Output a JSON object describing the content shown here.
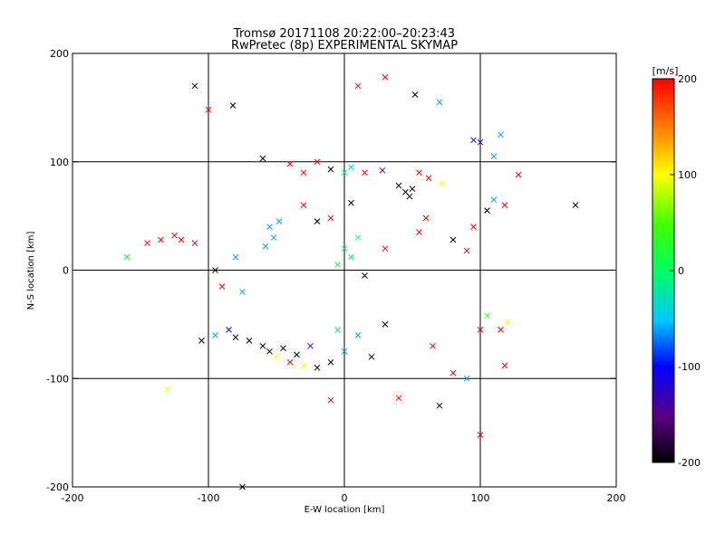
{
  "chart_data": {
    "type": "scatter",
    "title": "Tromsø 20171108 20:22:00–20:23:43",
    "subtitle": "RwPretec (8p) EXPERIMENTAL SKYMAP",
    "xlabel": "E-W location [km]",
    "ylabel": "N-S location [km]",
    "xlim": [
      -200,
      200
    ],
    "ylim": [
      -200,
      200
    ],
    "xticks": [
      "-200",
      "-100",
      "0",
      "100",
      "200"
    ],
    "yticks": [
      "-200",
      "-100",
      "0",
      "100",
      "200"
    ],
    "grid_lines": [
      -100,
      0,
      100
    ],
    "colorbar": {
      "label": "[m/s]",
      "range": [
        -200,
        200
      ],
      "ticks": [
        "-200",
        "-100",
        "0",
        "100",
        "200"
      ]
    },
    "marker_legend": "dots = small echoes, crosses = large echoes (implied by marker size)",
    "points": [
      {
        "x": -110,
        "y": 170,
        "v": -200,
        "m": "x"
      },
      {
        "x": -82,
        "y": 152,
        "v": -200,
        "m": "x"
      },
      {
        "x": -100,
        "y": 148,
        "v": 200,
        "m": "x"
      },
      {
        "x": -60,
        "y": 103,
        "v": -200,
        "m": "x"
      },
      {
        "x": -40,
        "y": 98,
        "v": 200,
        "m": "x"
      },
      {
        "x": -30,
        "y": 90,
        "v": 200,
        "m": "x"
      },
      {
        "x": -20,
        "y": 100,
        "v": 200,
        "m": "x"
      },
      {
        "x": -10,
        "y": 93,
        "v": -200,
        "m": "x"
      },
      {
        "x": 0,
        "y": 90,
        "v": 0,
        "m": "x"
      },
      {
        "x": 5,
        "y": 95,
        "v": -50,
        "m": "x"
      },
      {
        "x": 15,
        "y": 90,
        "v": 200,
        "m": "x"
      },
      {
        "x": 28,
        "y": 92,
        "v": -150,
        "m": "x"
      },
      {
        "x": 40,
        "y": 78,
        "v": -200,
        "m": "x"
      },
      {
        "x": 45,
        "y": 72,
        "v": -200,
        "m": "x"
      },
      {
        "x": 50,
        "y": 75,
        "v": -200,
        "m": "x"
      },
      {
        "x": 48,
        "y": 68,
        "v": -200,
        "m": "x"
      },
      {
        "x": 55,
        "y": 90,
        "v": 200,
        "m": "x"
      },
      {
        "x": 62,
        "y": 85,
        "v": 200,
        "m": "x"
      },
      {
        "x": 72,
        "y": 80,
        "v": 100,
        "m": "x"
      },
      {
        "x": 95,
        "y": 120,
        "v": -100,
        "m": "x"
      },
      {
        "x": 100,
        "y": 118,
        "v": -120,
        "m": "x"
      },
      {
        "x": 110,
        "y": 105,
        "v": -60,
        "m": "x"
      },
      {
        "x": 115,
        "y": 125,
        "v": -60,
        "m": "x"
      },
      {
        "x": 70,
        "y": 155,
        "v": -60,
        "m": "x"
      },
      {
        "x": 52,
        "y": 162,
        "v": -200,
        "m": "x"
      },
      {
        "x": 10,
        "y": 170,
        "v": 200,
        "m": "x"
      },
      {
        "x": 30,
        "y": 178,
        "v": 200,
        "m": "x"
      },
      {
        "x": 110,
        "y": 65,
        "v": -60,
        "m": "x"
      },
      {
        "x": 118,
        "y": 60,
        "v": 200,
        "m": "x"
      },
      {
        "x": 128,
        "y": 88,
        "v": 200,
        "m": "x"
      },
      {
        "x": 105,
        "y": 55,
        "v": -200,
        "m": "x"
      },
      {
        "x": 170,
        "y": 60,
        "v": -200,
        "m": "x"
      },
      {
        "x": -145,
        "y": 25,
        "v": 200,
        "m": "x"
      },
      {
        "x": -125,
        "y": 32,
        "v": 200,
        "m": "x"
      },
      {
        "x": -120,
        "y": 28,
        "v": 200,
        "m": "x"
      },
      {
        "x": -110,
        "y": 25,
        "v": 200,
        "m": "x"
      },
      {
        "x": -135,
        "y": 28,
        "v": 200,
        "m": "x"
      },
      {
        "x": -160,
        "y": 12,
        "v": 20,
        "m": "x"
      },
      {
        "x": -55,
        "y": 40,
        "v": -60,
        "m": "x"
      },
      {
        "x": -52,
        "y": 30,
        "v": -60,
        "m": "x"
      },
      {
        "x": -48,
        "y": 45,
        "v": -60,
        "m": "x"
      },
      {
        "x": -58,
        "y": 22,
        "v": -60,
        "m": "x"
      },
      {
        "x": -30,
        "y": 60,
        "v": 200,
        "m": "x"
      },
      {
        "x": -20,
        "y": 45,
        "v": -200,
        "m": "x"
      },
      {
        "x": -10,
        "y": 48,
        "v": 200,
        "m": "x"
      },
      {
        "x": 5,
        "y": 62,
        "v": -200,
        "m": "x"
      },
      {
        "x": 10,
        "y": 30,
        "v": 20,
        "m": "x"
      },
      {
        "x": 0,
        "y": 20,
        "v": 10,
        "m": "x"
      },
      {
        "x": 5,
        "y": 12,
        "v": 0,
        "m": "x"
      },
      {
        "x": -5,
        "y": 5,
        "v": 20,
        "m": "x"
      },
      {
        "x": 15,
        "y": -5,
        "v": -200,
        "m": "x"
      },
      {
        "x": 30,
        "y": 20,
        "v": 200,
        "m": "x"
      },
      {
        "x": 55,
        "y": 35,
        "v": 200,
        "m": "x"
      },
      {
        "x": 60,
        "y": 48,
        "v": 200,
        "m": "x"
      },
      {
        "x": 80,
        "y": 28,
        "v": -200,
        "m": "x"
      },
      {
        "x": 90,
        "y": 18,
        "v": 200,
        "m": "x"
      },
      {
        "x": 95,
        "y": 40,
        "v": 200,
        "m": "x"
      },
      {
        "x": -95,
        "y": 0,
        "v": -200,
        "m": "x"
      },
      {
        "x": -90,
        "y": -15,
        "v": 200,
        "m": "x"
      },
      {
        "x": -75,
        "y": -20,
        "v": -60,
        "m": "x"
      },
      {
        "x": -105,
        "y": -65,
        "v": -200,
        "m": "x"
      },
      {
        "x": -95,
        "y": -60,
        "v": -60,
        "m": "x"
      },
      {
        "x": -85,
        "y": -55,
        "v": -120,
        "m": "x"
      },
      {
        "x": -80,
        "y": -62,
        "v": -200,
        "m": "x"
      },
      {
        "x": -70,
        "y": -65,
        "v": -200,
        "m": "x"
      },
      {
        "x": -60,
        "y": -70,
        "v": -200,
        "m": "x"
      },
      {
        "x": -55,
        "y": -75,
        "v": -200,
        "m": "x"
      },
      {
        "x": -50,
        "y": -80,
        "v": 100,
        "m": "x"
      },
      {
        "x": -45,
        "y": -72,
        "v": -200,
        "m": "x"
      },
      {
        "x": -40,
        "y": -85,
        "v": 200,
        "m": "x"
      },
      {
        "x": -35,
        "y": -78,
        "v": -200,
        "m": "x"
      },
      {
        "x": -30,
        "y": -88,
        "v": 100,
        "m": "x"
      },
      {
        "x": -25,
        "y": -70,
        "v": -150,
        "m": "x"
      },
      {
        "x": -20,
        "y": -90,
        "v": -200,
        "m": "x"
      },
      {
        "x": -10,
        "y": -85,
        "v": -200,
        "m": "x"
      },
      {
        "x": 0,
        "y": -75,
        "v": -60,
        "m": "x"
      },
      {
        "x": 10,
        "y": -60,
        "v": -60,
        "m": "x"
      },
      {
        "x": 20,
        "y": -80,
        "v": -200,
        "m": "x"
      },
      {
        "x": 30,
        "y": -50,
        "v": -200,
        "m": "x"
      },
      {
        "x": -5,
        "y": -55,
        "v": 0,
        "m": "x"
      },
      {
        "x": 65,
        "y": -70,
        "v": 200,
        "m": "x"
      },
      {
        "x": 80,
        "y": -95,
        "v": 200,
        "m": "x"
      },
      {
        "x": 90,
        "y": -100,
        "v": -60,
        "m": "x"
      },
      {
        "x": 100,
        "y": -55,
        "v": 200,
        "m": "x"
      },
      {
        "x": 105,
        "y": -42,
        "v": 40,
        "m": "x"
      },
      {
        "x": 115,
        "y": -55,
        "v": 200,
        "m": "x"
      },
      {
        "x": 120,
        "y": -48,
        "v": 100,
        "m": "x"
      },
      {
        "x": 118,
        "y": -88,
        "v": 200,
        "m": "x"
      },
      {
        "x": -10,
        "y": -120,
        "v": 200,
        "m": "x"
      },
      {
        "x": 40,
        "y": -118,
        "v": 200,
        "m": "x"
      },
      {
        "x": 70,
        "y": -125,
        "v": -200,
        "m": "x"
      },
      {
        "x": 100,
        "y": -152,
        "v": 200,
        "m": "x"
      },
      {
        "x": -130,
        "y": -110,
        "v": 100,
        "m": "x"
      },
      {
        "x": -75,
        "y": -200,
        "v": -200,
        "m": "x"
      },
      {
        "x": -80,
        "y": 12,
        "v": -60,
        "m": "x"
      }
    ]
  }
}
